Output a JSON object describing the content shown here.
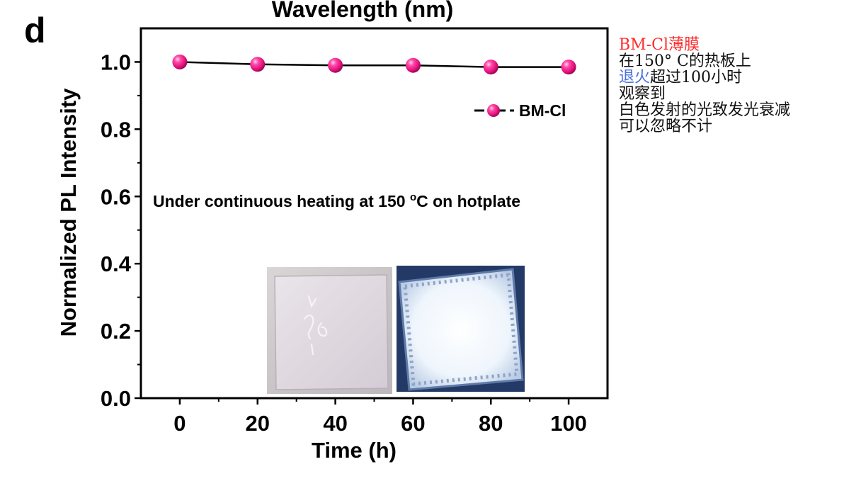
{
  "figure": {
    "panel_label": "d",
    "top_cut_label": "Wavelength (nm)",
    "annotation_prefix": "Under continuous heating at 150 ",
    "annotation_degree": "o",
    "annotation_suffix": "C on hotplate"
  },
  "photos": [
    {
      "name": "film-under-daylight-photo",
      "tone": "#c8c4c2"
    },
    {
      "name": "film-under-uv-photo",
      "tone": "#e2ecf6"
    }
  ],
  "side_note": {
    "line1_red": "BM-Cl薄膜",
    "line2": "在150° C的热板上",
    "line3_blue": "退火",
    "line3_rest": "超过100小时",
    "line4": "观察到",
    "line5": "白色发射的光致发光衰减",
    "line6": "可以忽略不计",
    "colors": {
      "red": "#ff2a2a",
      "blue": "#4a6fe0",
      "text": "#111111"
    }
  },
  "chart_data": {
    "type": "line",
    "xlabel": "Time (h)",
    "ylabel": "Normalized PL Intensity",
    "xlim": [
      -10,
      110
    ],
    "ylim": [
      0.0,
      1.1
    ],
    "xticks": [
      0,
      20,
      40,
      60,
      80,
      100
    ],
    "xtick_labels": [
      "0",
      "20",
      "40",
      "60",
      "80",
      "100"
    ],
    "yticks": [
      0.0,
      0.2,
      0.4,
      0.6,
      0.8,
      1.0
    ],
    "ytick_labels": [
      "0.0",
      "0.2",
      "0.4",
      "0.6",
      "0.8",
      "1.0"
    ],
    "grid": false,
    "legend_position": "top-right",
    "series": [
      {
        "name": "BM-Cl",
        "color": "#e8147f",
        "marker": "sphere",
        "x": [
          0,
          20,
          40,
          60,
          80,
          100
        ],
        "y": [
          1.0,
          0.993,
          0.99,
          0.99,
          0.985,
          0.985
        ]
      }
    ]
  }
}
